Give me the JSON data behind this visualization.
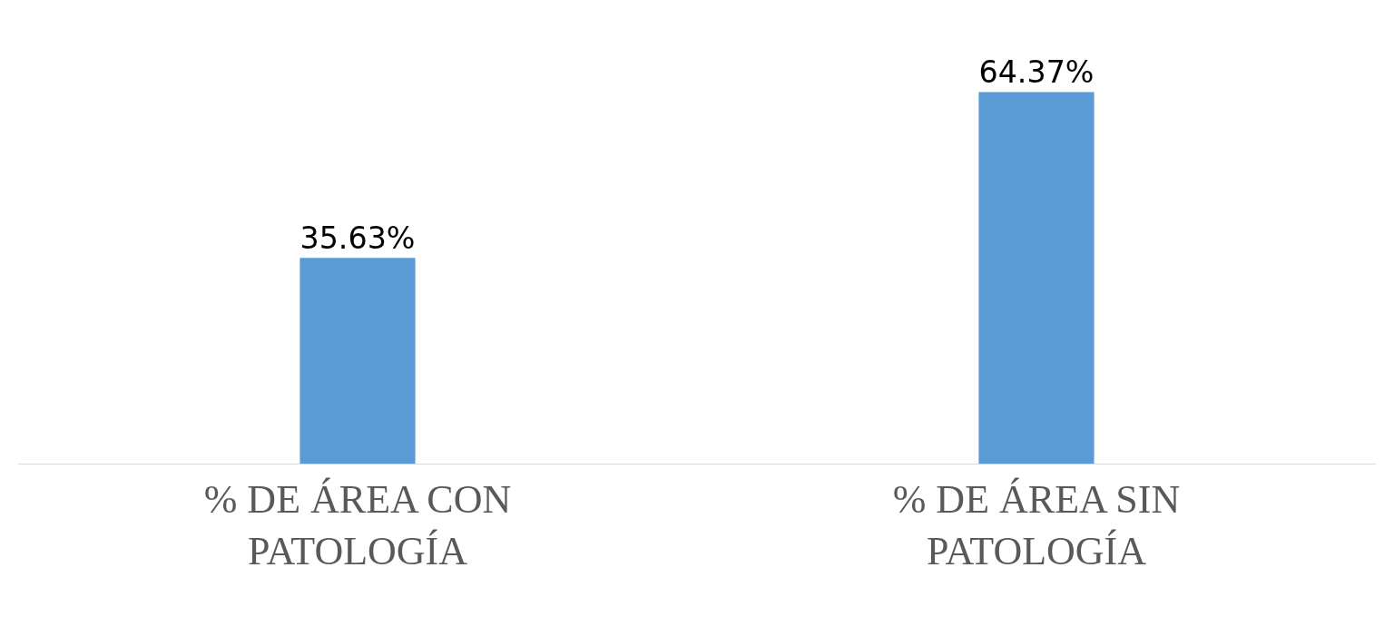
{
  "chart_data": {
    "type": "bar",
    "categories": [
      "% DE ÁREA CON PATOLOGÍA",
      "% DE ÁREA SIN PATOLOGÍA"
    ],
    "values": [
      35.63,
      64.37
    ],
    "value_labels": [
      "35.63%",
      "64.37%"
    ],
    "color": "#5b9bd5"
  }
}
